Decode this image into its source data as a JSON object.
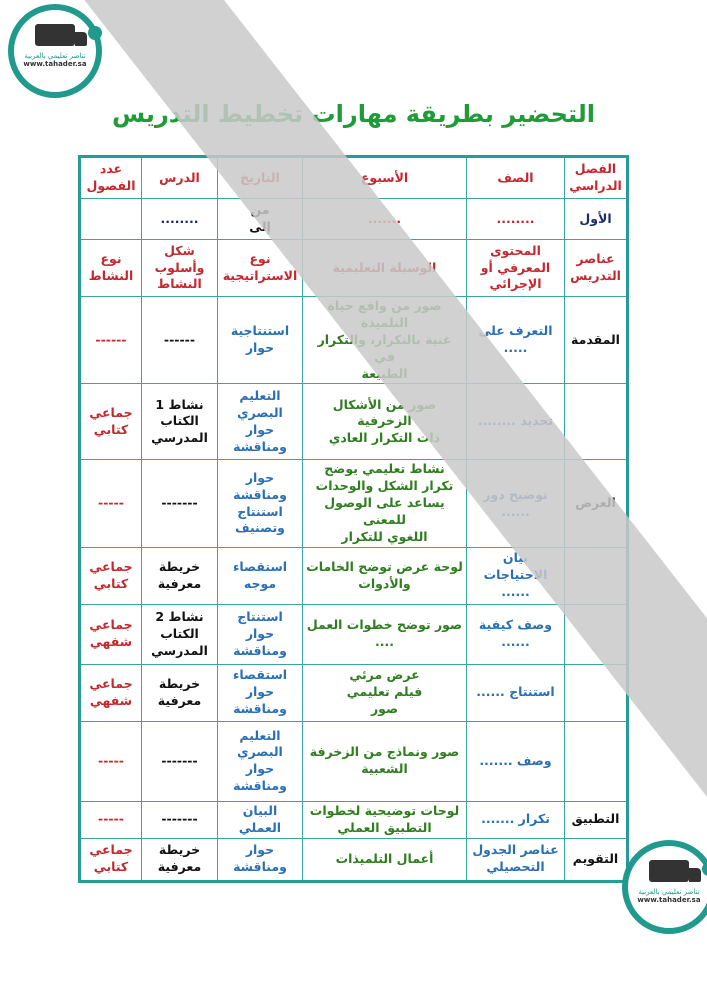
{
  "logo": {
    "line1": "تناضر تعليمي بالعربية",
    "url": "www.tahader.sa"
  },
  "title": "التحضير بطريقة مهارات تخطيط التدريس",
  "rows": [
    [
      {
        "t": "الفصل\nالدراسي",
        "c": "red"
      },
      {
        "t": "الصف",
        "c": "red"
      },
      {
        "t": "الأسبوع",
        "c": "red"
      },
      {
        "t": "التاريخ",
        "c": "red"
      },
      {
        "t": "الدرس",
        "c": "red"
      },
      {
        "t": "عدد\nالفصول",
        "c": "red"
      }
    ],
    [
      {
        "t": "الأول",
        "c": "navy"
      },
      {
        "t": "........",
        "c": "red"
      },
      {
        "t": ".......",
        "c": "red"
      },
      {
        "t": "من\nإلى",
        "c": "black"
      },
      {
        "t": "........",
        "c": "navy"
      },
      {
        "t": "",
        "c": "black"
      }
    ],
    [
      {
        "t": "عناصر\nالتدريس",
        "c": "red"
      },
      {
        "t": "المحتوى\nالمعرفي أو\nالإجرائي",
        "c": "red"
      },
      {
        "t": "الوسيلة التعليمية",
        "c": "red"
      },
      {
        "t": "نوع\nالاستراتيجية",
        "c": "red"
      },
      {
        "t": "شكل\nوأسلوب\nالنشاط",
        "c": "red"
      },
      {
        "t": "نوع\nالنشاط",
        "c": "red"
      }
    ],
    [
      {
        "t": "المقدمة",
        "c": "black"
      },
      {
        "t": "التعرف على\n.....",
        "c": "blue"
      },
      {
        "t": "صور من واقع حياة التلميذة\nغنية بالتكرار، والتكرار في\nالطبيعة",
        "c": "green"
      },
      {
        "t": "استنتاجية\nحوار",
        "c": "blue"
      },
      {
        "t": "------",
        "c": "black"
      },
      {
        "t": "------",
        "c": "red"
      }
    ],
    [
      {
        "t": "",
        "c": "black"
      },
      {
        "t": "تحديد ........",
        "c": "blue"
      },
      {
        "t": "صور من الأشكال الزخرفية\nذات التكرار العادي",
        "c": "green"
      },
      {
        "t": "التعليم\nالبصري\nحوار\nومناقشة",
        "c": "blue"
      },
      {
        "t": "نشاط 1\nالكتاب\nالمدرسي",
        "c": "black"
      },
      {
        "t": "جماعي\nكتابي",
        "c": "red"
      }
    ],
    [
      {
        "t": "العرض",
        "c": "black"
      },
      {
        "t": "توضيح دور\n......",
        "c": "blue"
      },
      {
        "t": "نشاط تعليمي يوضح\nتكرار الشكل والوحدات\nيساعد على الوصول للمعنى\nاللغوي للتكرار",
        "c": "green"
      },
      {
        "t": "حوار\nومناقشة\nاستنتاج\nوتصنيف",
        "c": "blue"
      },
      {
        "t": "-------",
        "c": "black"
      },
      {
        "t": "-----",
        "c": "red"
      }
    ],
    [
      {
        "t": "",
        "c": "black"
      },
      {
        "t": "بيان\nالاحتياجات\n......",
        "c": "blue"
      },
      {
        "t": "لوحة عرض توضح الخامات\nوالأدوات",
        "c": "green"
      },
      {
        "t": "استقصاء\nموجه",
        "c": "blue"
      },
      {
        "t": "خريطة\nمعرفية",
        "c": "black"
      },
      {
        "t": "جماعي\nكتابي",
        "c": "red"
      }
    ],
    [
      {
        "t": "",
        "c": "black"
      },
      {
        "t": "وصف كيفية\n......",
        "c": "blue"
      },
      {
        "t": "صور توضح خطوات العمل\n....",
        "c": "green"
      },
      {
        "t": "استنتاج\nحوار\nومناقشة",
        "c": "blue"
      },
      {
        "t": "نشاط 2\nالكتاب\nالمدرسي",
        "c": "black"
      },
      {
        "t": "جماعي\nشفهي",
        "c": "red"
      }
    ],
    [
      {
        "t": "",
        "c": "black"
      },
      {
        "t": "استنتاج ......",
        "c": "blue"
      },
      {
        "t": "عرض مرئي\nفيلم تعليمي\nصور",
        "c": "green"
      },
      {
        "t": "استقصاء\nحوار\nومناقشة",
        "c": "blue"
      },
      {
        "t": "خريطة\nمعرفية",
        "c": "black"
      },
      {
        "t": "جماعي\nشفهي",
        "c": "red"
      }
    ],
    [
      {
        "t": "",
        "c": "black"
      },
      {
        "t": "وصف .......",
        "c": "blue"
      },
      {
        "t": "صور ونماذج من الزخرفة\nالشعبية",
        "c": "green"
      },
      {
        "t": "التعليم\nالبصري\nحوار\nومناقشة",
        "c": "blue"
      },
      {
        "t": "-------",
        "c": "black"
      },
      {
        "t": "-----",
        "c": "red"
      }
    ],
    [
      {
        "t": "التطبيق",
        "c": "black"
      },
      {
        "t": "تكرار .......",
        "c": "blue"
      },
      {
        "t": "لوحات توضيحية لخطوات\nالتطبيق العملي",
        "c": "green"
      },
      {
        "t": "البيان العملي",
        "c": "blue"
      },
      {
        "t": "-------",
        "c": "black"
      },
      {
        "t": "-----",
        "c": "red"
      }
    ],
    [
      {
        "t": "التقويم",
        "c": "black"
      },
      {
        "t": "عناصر الجدول\nالتحصيلي",
        "c": "blue"
      },
      {
        "t": "أعمال التلميذات",
        "c": "green"
      },
      {
        "t": "حوار\nومناقشة",
        "c": "blue"
      },
      {
        "t": "خريطة\nمعرفية",
        "c": "black"
      },
      {
        "t": "جماعي\nكتابي",
        "c": "red"
      }
    ]
  ]
}
